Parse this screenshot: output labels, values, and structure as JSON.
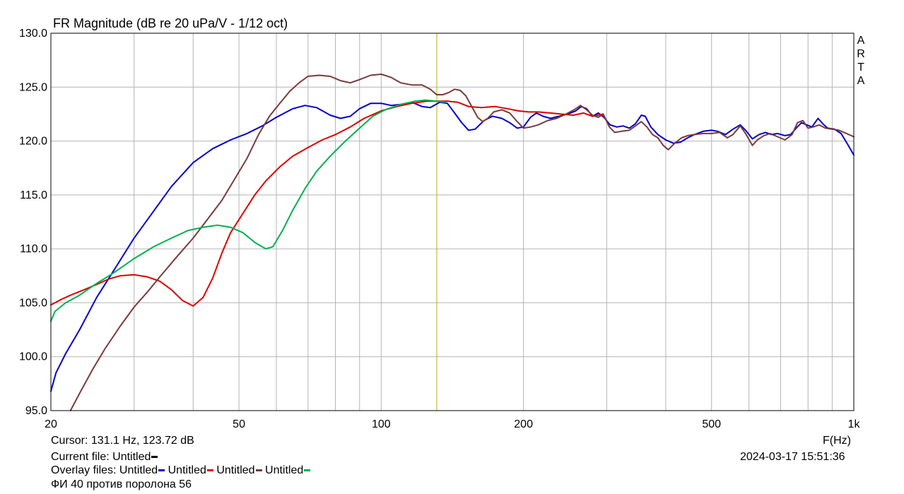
{
  "chart_data": {
    "type": "line",
    "title": "FR Magnitude (dB re 20 uPa/V - 1/12 oct)",
    "watermark": [
      "A",
      "R",
      "T",
      "A"
    ],
    "x_scale": "log",
    "xlim": [
      20,
      1000
    ],
    "ylim": [
      95,
      130
    ],
    "x_ticks": [
      {
        "value": 20,
        "label": "20"
      },
      {
        "value": 50,
        "label": "50"
      },
      {
        "value": 100,
        "label": "100"
      },
      {
        "value": 200,
        "label": "200"
      },
      {
        "value": 500,
        "label": "500"
      },
      {
        "value": 1000,
        "label": "1k"
      }
    ],
    "y_ticks": [
      {
        "value": 95,
        "label": "95.0"
      },
      {
        "value": 100,
        "label": "100.0"
      },
      {
        "value": 105,
        "label": "105.0"
      },
      {
        "value": 110,
        "label": "110.0"
      },
      {
        "value": 115,
        "label": "115.0"
      },
      {
        "value": 120,
        "label": "120.0"
      },
      {
        "value": 125,
        "label": "125.0"
      },
      {
        "value": 130,
        "label": "130.0"
      }
    ],
    "xlabel": "F(Hz)",
    "grid": true,
    "cursor_frequency": 131.1,
    "series": [
      {
        "name": "Untitled",
        "color": "#0000cc",
        "points": [
          [
            20,
            96.8
          ],
          [
            20.5,
            98.5
          ],
          [
            21.5,
            100.3
          ],
          [
            23,
            102.5
          ],
          [
            25,
            105.5
          ],
          [
            27,
            107.8
          ],
          [
            30,
            111
          ],
          [
            33,
            113.5
          ],
          [
            36,
            115.8
          ],
          [
            40,
            118
          ],
          [
            44,
            119.3
          ],
          [
            48,
            120.1
          ],
          [
            52,
            120.7
          ],
          [
            56,
            121.4
          ],
          [
            60,
            122.2
          ],
          [
            65,
            123
          ],
          [
            69,
            123.3
          ],
          [
            73,
            123.1
          ],
          [
            78,
            122.4
          ],
          [
            82,
            122.1
          ],
          [
            86,
            122.3
          ],
          [
            90,
            123
          ],
          [
            95,
            123.5
          ],
          [
            100,
            123.5
          ],
          [
            105,
            123.3
          ],
          [
            110,
            123.4
          ],
          [
            116,
            123.6
          ],
          [
            122,
            123.2
          ],
          [
            127,
            123.1
          ],
          [
            133,
            123.6
          ],
          [
            138,
            123.5
          ],
          [
            143,
            122.6
          ],
          [
            148,
            121.7
          ],
          [
            153,
            121
          ],
          [
            158,
            121.1
          ],
          [
            165,
            121.9
          ],
          [
            172,
            122.3
          ],
          [
            180,
            122.1
          ],
          [
            187,
            121.7
          ],
          [
            194,
            121.2
          ],
          [
            200,
            121.3
          ],
          [
            207,
            122.2
          ],
          [
            213,
            122.6
          ],
          [
            220,
            122.3
          ],
          [
            228,
            122.1
          ],
          [
            238,
            122.3
          ],
          [
            248,
            122.5
          ],
          [
            258,
            122.8
          ],
          [
            265,
            123.2
          ],
          [
            272,
            123
          ],
          [
            280,
            122.3
          ],
          [
            288,
            122.6
          ],
          [
            296,
            122.2
          ],
          [
            305,
            121.5
          ],
          [
            315,
            121.3
          ],
          [
            325,
            121.4
          ],
          [
            335,
            121.2
          ],
          [
            345,
            121.6
          ],
          [
            355,
            122.4
          ],
          [
            362,
            122.3
          ],
          [
            372,
            121.3
          ],
          [
            385,
            120.6
          ],
          [
            400,
            120.1
          ],
          [
            415,
            119.8
          ],
          [
            430,
            119.9
          ],
          [
            445,
            120.3
          ],
          [
            460,
            120.6
          ],
          [
            480,
            120.9
          ],
          [
            500,
            121
          ],
          [
            515,
            120.9
          ],
          [
            535,
            120.6
          ],
          [
            555,
            121.1
          ],
          [
            575,
            121.5
          ],
          [
            590,
            121
          ],
          [
            610,
            120.2
          ],
          [
            630,
            120.6
          ],
          [
            650,
            120.8
          ],
          [
            670,
            120.6
          ],
          [
            690,
            120.7
          ],
          [
            715,
            120.5
          ],
          [
            735,
            120.6
          ],
          [
            755,
            121.2
          ],
          [
            775,
            121.7
          ],
          [
            795,
            121.5
          ],
          [
            815,
            121.3
          ],
          [
            840,
            122.1
          ],
          [
            860,
            121.6
          ],
          [
            880,
            121.2
          ],
          [
            910,
            121.1
          ],
          [
            940,
            120.7
          ],
          [
            970,
            119.7
          ],
          [
            1000,
            118.7
          ]
        ]
      },
      {
        "name": "Untitled",
        "color": "#dd0000",
        "points": [
          [
            20,
            104.8
          ],
          [
            21,
            105.3
          ],
          [
            22,
            105.7
          ],
          [
            23.5,
            106.2
          ],
          [
            25,
            106.7
          ],
          [
            26.5,
            107.2
          ],
          [
            28,
            107.5
          ],
          [
            30,
            107.6
          ],
          [
            32,
            107.4
          ],
          [
            34,
            107
          ],
          [
            36,
            106.2
          ],
          [
            38,
            105.2
          ],
          [
            40,
            104.7
          ],
          [
            42,
            105.5
          ],
          [
            44,
            107.3
          ],
          [
            46,
            109.6
          ],
          [
            48,
            111.5
          ],
          [
            51,
            113.3
          ],
          [
            54,
            115
          ],
          [
            57,
            116.3
          ],
          [
            61,
            117.6
          ],
          [
            65,
            118.6
          ],
          [
            70,
            119.4
          ],
          [
            75,
            120.1
          ],
          [
            80,
            120.6
          ],
          [
            86,
            121.3
          ],
          [
            92,
            122.1
          ],
          [
            100,
            122.8
          ],
          [
            108,
            123.2
          ],
          [
            116,
            123.5
          ],
          [
            125,
            123.7
          ],
          [
            131,
            123.7
          ],
          [
            138,
            123.7
          ],
          [
            145,
            123.6
          ],
          [
            153,
            123.2
          ],
          [
            163,
            123.1
          ],
          [
            174,
            123.2
          ],
          [
            185,
            123
          ],
          [
            195,
            122.8
          ],
          [
            205,
            122.7
          ],
          [
            215,
            122.7
          ],
          [
            228,
            122.6
          ],
          [
            240,
            122.5
          ],
          [
            255,
            122.4
          ],
          [
            268,
            122.6
          ],
          [
            280,
            122.3
          ],
          [
            295,
            122.5
          ]
        ]
      },
      {
        "name": "Untitled",
        "color": "#7a3a3a",
        "points": [
          [
            22,
            95
          ],
          [
            23,
            96.6
          ],
          [
            24.5,
            98.8
          ],
          [
            26,
            100.7
          ],
          [
            28,
            102.8
          ],
          [
            30,
            104.6
          ],
          [
            32,
            106
          ],
          [
            34,
            107.4
          ],
          [
            37,
            109.3
          ],
          [
            40,
            111
          ],
          [
            43,
            112.8
          ],
          [
            46,
            114.5
          ],
          [
            49,
            116.5
          ],
          [
            52,
            118.4
          ],
          [
            55,
            120.6
          ],
          [
            58,
            122.3
          ],
          [
            61,
            123.5
          ],
          [
            64,
            124.6
          ],
          [
            67,
            125.4
          ],
          [
            70,
            126
          ],
          [
            74,
            126.1
          ],
          [
            78,
            126
          ],
          [
            82,
            125.6
          ],
          [
            86,
            125.4
          ],
          [
            90,
            125.7
          ],
          [
            95,
            126.1
          ],
          [
            100,
            126.2
          ],
          [
            105,
            125.9
          ],
          [
            110,
            125.4
          ],
          [
            116,
            125.2
          ],
          [
            122,
            125.2
          ],
          [
            127,
            124.8
          ],
          [
            131,
            124.3
          ],
          [
            135,
            124.3
          ],
          [
            139,
            124.5
          ],
          [
            143,
            124.8
          ],
          [
            147,
            124.7
          ],
          [
            151,
            124.2
          ],
          [
            155,
            123.3
          ],
          [
            160,
            122.2
          ],
          [
            164,
            121.8
          ],
          [
            168,
            122.1
          ],
          [
            173,
            122.7
          ],
          [
            180,
            122.9
          ],
          [
            187,
            122.6
          ],
          [
            194,
            121.8
          ],
          [
            200,
            121.2
          ],
          [
            207,
            121.3
          ],
          [
            215,
            121.5
          ],
          [
            225,
            121.9
          ],
          [
            235,
            122.1
          ],
          [
            246,
            122.5
          ],
          [
            256,
            122.9
          ],
          [
            264,
            123.3
          ],
          [
            272,
            122.9
          ],
          [
            280,
            122.4
          ],
          [
            288,
            122.2
          ],
          [
            295,
            122.5
          ],
          [
            304,
            121.3
          ],
          [
            312,
            120.8
          ],
          [
            322,
            120.9
          ],
          [
            335,
            121
          ],
          [
            345,
            121.4
          ],
          [
            355,
            121.8
          ],
          [
            365,
            121.3
          ],
          [
            375,
            120.6
          ],
          [
            385,
            120.3
          ],
          [
            395,
            119.6
          ],
          [
            405,
            119.2
          ],
          [
            418,
            119.8
          ],
          [
            432,
            120.3
          ],
          [
            445,
            120.5
          ],
          [
            460,
            120.6
          ],
          [
            480,
            120.7
          ],
          [
            500,
            120.7
          ],
          [
            520,
            120.8
          ],
          [
            540,
            120.3
          ],
          [
            555,
            120.6
          ],
          [
            575,
            121.4
          ],
          [
            590,
            120.7
          ],
          [
            610,
            119.6
          ],
          [
            625,
            120.1
          ],
          [
            645,
            120.5
          ],
          [
            665,
            120.7
          ],
          [
            690,
            120.4
          ],
          [
            715,
            120.1
          ],
          [
            740,
            120.6
          ],
          [
            760,
            121.7
          ],
          [
            780,
            121.9
          ],
          [
            800,
            121.2
          ],
          [
            820,
            121.3
          ],
          [
            845,
            121.5
          ],
          [
            870,
            121.2
          ],
          [
            900,
            121.1
          ],
          [
            930,
            121
          ],
          [
            965,
            120.7
          ],
          [
            1000,
            120.4
          ]
        ]
      },
      {
        "name": "Untitled",
        "color": "#00b050",
        "points": [
          [
            20,
            103.3
          ],
          [
            20.4,
            104.2
          ],
          [
            21.5,
            105
          ],
          [
            23,
            105.7
          ],
          [
            25,
            106.8
          ],
          [
            27,
            107.7
          ],
          [
            30,
            109.1
          ],
          [
            33,
            110.2
          ],
          [
            36,
            111
          ],
          [
            39,
            111.7
          ],
          [
            42,
            112
          ],
          [
            45,
            112.2
          ],
          [
            48,
            112
          ],
          [
            51,
            111.5
          ],
          [
            54,
            110.6
          ],
          [
            57,
            110
          ],
          [
            59,
            110.2
          ],
          [
            62,
            111.8
          ],
          [
            65,
            113.6
          ],
          [
            69,
            115.6
          ],
          [
            73,
            117.2
          ],
          [
            78,
            118.6
          ],
          [
            84,
            120
          ],
          [
            90,
            121.2
          ],
          [
            96,
            122.3
          ],
          [
            102,
            122.9
          ],
          [
            110,
            123.4
          ],
          [
            118,
            123.7
          ],
          [
            124,
            123.8
          ],
          [
            131,
            123.7
          ],
          [
            137,
            123.6
          ]
        ]
      }
    ]
  },
  "chart_title": "FR Magnitude (dB re 20 uPa/V - 1/12 oct)",
  "footer": {
    "cursor": "Cursor: 131.1 Hz, 123.72 dB",
    "current_file_label": "Current file: Untitled",
    "current_file_color": "#000000",
    "overlay_label": "Overlay files:",
    "overlay_files": [
      {
        "name": "Untitled",
        "color": "#0000cc"
      },
      {
        "name": "Untitled",
        "color": "#dd0000"
      },
      {
        "name": "Untitled",
        "color": "#7a3a3a"
      },
      {
        "name": "Untitled",
        "color": "#00b050"
      }
    ],
    "note": "ФИ 40 против поролона 56",
    "xlabel": "F(Hz)",
    "timestamp": "2024-03-17   15:51:36"
  },
  "colors": {
    "grid": "#b4b4b4",
    "cursor_line": "#b0b000",
    "axis": "#000000"
  }
}
